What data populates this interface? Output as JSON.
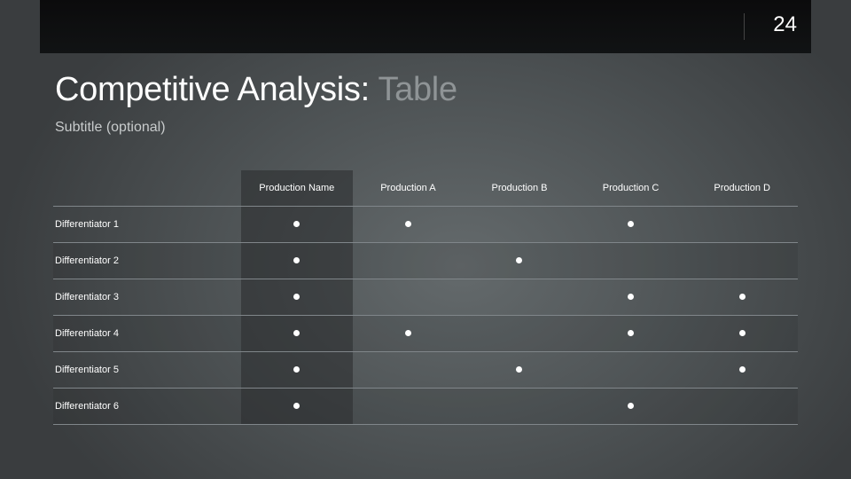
{
  "header": {
    "page_number": "24"
  },
  "title": {
    "main": "Competitive Analysis:",
    "accent": "Table"
  },
  "subtitle": "Subtitle (optional)",
  "table": {
    "columns": [
      "Production Name",
      "Production A",
      "Production B",
      "Production C",
      "Production D"
    ],
    "rows": [
      {
        "label": "Differentiator 1",
        "marks": [
          true,
          true,
          false,
          true,
          false
        ]
      },
      {
        "label": "Differentiator 2",
        "marks": [
          true,
          false,
          true,
          false,
          false
        ]
      },
      {
        "label": "Differentiator 3",
        "marks": [
          true,
          false,
          false,
          true,
          true
        ]
      },
      {
        "label": "Differentiator 4",
        "marks": [
          true,
          true,
          false,
          true,
          true
        ]
      },
      {
        "label": "Differentiator 5",
        "marks": [
          true,
          false,
          true,
          false,
          true
        ]
      },
      {
        "label": "Differentiator 6",
        "marks": [
          true,
          false,
          false,
          true,
          false
        ]
      }
    ]
  }
}
